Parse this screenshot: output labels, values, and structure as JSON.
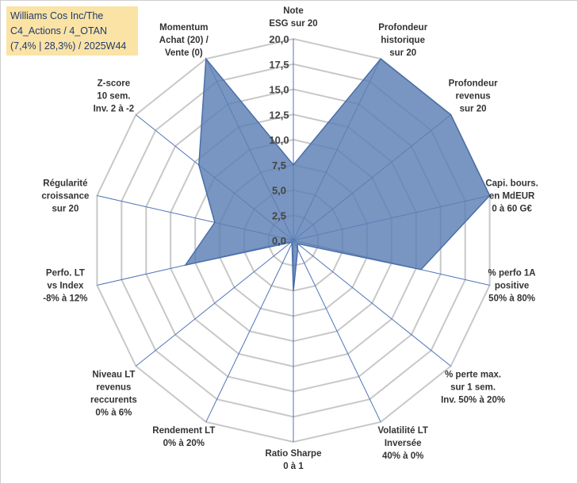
{
  "header": {
    "title_lines": [
      "Williams Cos Inc/The",
      "C4_Actions / 4_OTAN",
      "(7,4% | 28,3%) / 2025W44"
    ]
  },
  "colors": {
    "fill": "#5b7fb5",
    "stroke": "#4a6ea8",
    "grid": "#c8c8c8",
    "axis": "#4f74b8",
    "title_bg": "#fbe3a6",
    "title_text": "#1f3a6b"
  },
  "chart_data": {
    "type": "radar",
    "title": "",
    "rmin": 0,
    "rmax": 20,
    "ticks": [
      0,
      2.5,
      5,
      7.5,
      10,
      12.5,
      15,
      17.5,
      20
    ],
    "tick_labels": [
      "0,0",
      "2,5",
      "5,0",
      "7,5",
      "10,0",
      "12,5",
      "15,0",
      "17,5",
      "20,0"
    ],
    "axes": [
      {
        "label": [
          "Note",
          "ESG sur 20"
        ],
        "value": 7.5
      },
      {
        "label": [
          "Profondeur",
          "historique",
          "sur 20"
        ],
        "value": 20
      },
      {
        "label": [
          "Profondeur",
          "revenus",
          "sur 20"
        ],
        "value": 20
      },
      {
        "label": [
          "Capi. bours.",
          "en MdEUR",
          "0 à 60 G€"
        ],
        "value": 20
      },
      {
        "label": [
          "% perfo 1A",
          "positive",
          "50% à 80%"
        ],
        "value": 13
      },
      {
        "label": [
          "% perte max.",
          "sur 1 sem.",
          "Inv. 50% à 20%"
        ],
        "value": 0.5
      },
      {
        "label": [
          "Volatilité LT",
          "Inversée",
          "40% à 0%"
        ],
        "value": 1
      },
      {
        "label": [
          "Ratio Sharpe",
          "0 à 1"
        ],
        "value": 5
      },
      {
        "label": [
          "Rendement LT",
          "0% à 20%"
        ],
        "value": 0.3
      },
      {
        "label": [
          "Niveau LT",
          "revenus",
          "reccurents",
          "0% à 6%"
        ],
        "value": 0.3
      },
      {
        "label": [
          "Perfo. LT",
          "vs Index",
          "-8% à 12%"
        ],
        "value": 11
      },
      {
        "label": [
          "Régularité",
          "croissance",
          "sur 20"
        ],
        "value": 8
      },
      {
        "label": [
          "Z-score",
          "10 sem.",
          "Inv. 2 à -2"
        ],
        "value": 12
      },
      {
        "label": [
          "Momentum",
          "Achat (20) /",
          "Vente (0)"
        ],
        "value": 20
      }
    ]
  }
}
